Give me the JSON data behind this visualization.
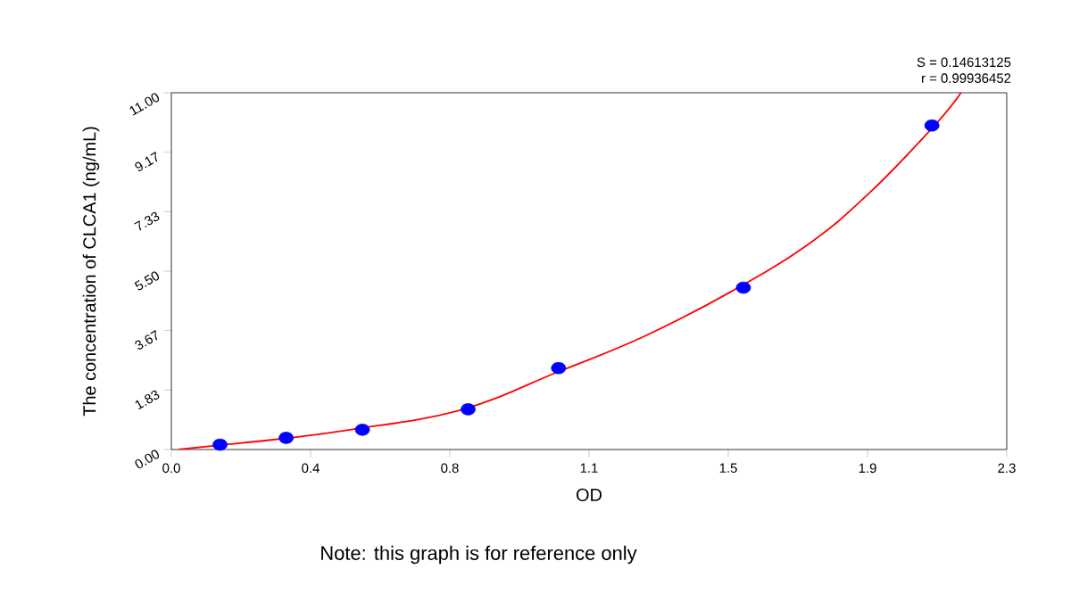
{
  "chart_data": {
    "type": "scatter",
    "xlabel": "OD",
    "ylabel": "The concentration of CLCA1 (ng/mL)",
    "series": [
      {
        "color": "#0000ff",
        "marker": "circle",
        "x": [
          0.134,
          0.316,
          0.526,
          0.817,
          1.066,
          1.575,
          2.094
        ],
        "values": [
          0.15,
          0.36,
          0.61,
          1.24,
          2.51,
          4.99,
          9.99
        ]
      },
      {
        "type": "line",
        "color": "#ff0000",
        "marker": "none",
        "x": [
          0.02,
          0.13,
          0.3,
          0.5,
          0.8,
          1.07,
          1.3,
          1.535,
          1.75,
          1.919,
          2.098,
          2.174
        ],
        "values": [
          0,
          0.13,
          0.33,
          0.62,
          1.23,
          2.42,
          3.48,
          4.83,
          6.3,
          7.88,
          9.95,
          11
        ]
      }
    ],
    "xlim": [
      0,
      2.3
    ],
    "xticks": [
      {
        "value": 0,
        "label": "0.0"
      },
      {
        "value": 0.3833,
        "label": "0.4"
      },
      {
        "value": 0.7667,
        "label": "0.8"
      },
      {
        "value": 1.15,
        "label": "1.1"
      },
      {
        "value": 1.5333,
        "label": "1.5"
      },
      {
        "value": 1.9167,
        "label": "1.9"
      },
      {
        "value": 2.3,
        "label": "2.3"
      }
    ],
    "ylim": [
      0,
      11
    ],
    "yticks": [
      {
        "value": 0,
        "label": "0.00"
      },
      {
        "value": 1.8333,
        "label": "1.83"
      },
      {
        "value": 3.6667,
        "label": "3.67"
      },
      {
        "value": 5.5,
        "label": "5.50"
      },
      {
        "value": 7.3333,
        "label": "7.33"
      },
      {
        "value": 9.1667,
        "label": "9.17"
      },
      {
        "value": 11,
        "label": "11.00"
      }
    ],
    "grid": false,
    "annotations": [
      "S = 0.14613125",
      "r = 0.99936452",
      "Note: this graph is for reference only"
    ]
  }
}
